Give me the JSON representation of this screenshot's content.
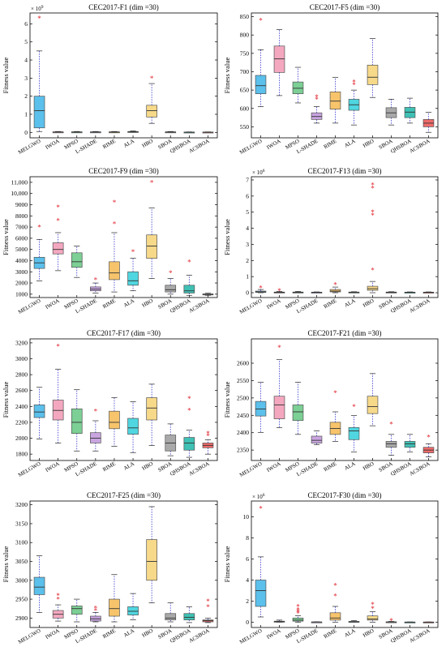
{
  "categories": [
    "MELGWO",
    "IWOA",
    "MPSO",
    "L-SHADE",
    "RIME",
    "ALA",
    "HBO",
    "SBOA",
    "QHSBOA",
    "ACSBOA"
  ],
  "colors": [
    "#5bc0eb",
    "#f4a8c0",
    "#7ccf95",
    "#c9a5e0",
    "#f7c46c",
    "#4fd6e0",
    "#f7d98a",
    "#a9a9a9",
    "#3fc1b5",
    "#ef6b6b"
  ],
  "ylabel": "Fitness value",
  "chart_data": [
    {
      "type": "box",
      "title": "CEC2017-F1 (dim =30)",
      "multiplier": "× 10^9",
      "ylim": [
        -0.3,
        6.6
      ],
      "yticks": [
        0,
        1,
        2,
        3,
        4,
        5,
        6
      ],
      "yticklabels": [
        "0",
        "1",
        "2",
        "3",
        "4",
        "5",
        "6"
      ],
      "boxes": [
        {
          "min": 0.05,
          "q1": 0.25,
          "median": 1.2,
          "q3": 2.0,
          "max": 4.5,
          "outliers": [
            6.3
          ]
        },
        {
          "min": 0.0,
          "q1": 0.01,
          "median": 0.02,
          "q3": 0.03,
          "max": 0.05,
          "outliers": []
        },
        {
          "min": 0.0,
          "q1": 0.01,
          "median": 0.02,
          "q3": 0.03,
          "max": 0.05,
          "outliers": []
        },
        {
          "min": 0.0,
          "q1": 0.01,
          "median": 0.02,
          "q3": 0.03,
          "max": 0.05,
          "outliers": []
        },
        {
          "min": 0.0,
          "q1": 0.01,
          "median": 0.02,
          "q3": 0.03,
          "max": 0.05,
          "outliers": []
        },
        {
          "min": 0.0,
          "q1": 0.01,
          "median": 0.03,
          "q3": 0.05,
          "max": 0.08,
          "outliers": []
        },
        {
          "min": 0.5,
          "q1": 0.85,
          "median": 1.2,
          "q3": 1.5,
          "max": 2.7,
          "outliers": [
            3.0
          ]
        },
        {
          "min": 0.0,
          "q1": 0.01,
          "median": 0.02,
          "q3": 0.03,
          "max": 0.05,
          "outliers": []
        },
        {
          "min": 0.0,
          "q1": 0.0,
          "median": 0.01,
          "q3": 0.02,
          "max": 0.03,
          "outliers": []
        },
        {
          "min": 0.0,
          "q1": 0.0,
          "median": 0.01,
          "q3": 0.02,
          "max": 0.03,
          "outliers": []
        }
      ]
    },
    {
      "type": "box",
      "title": "CEC2017-F5 (dim =30)",
      "multiplier": "",
      "ylim": [
        520,
        860
      ],
      "yticks": [
        550,
        600,
        650,
        700,
        750,
        800,
        850
      ],
      "yticklabels": [
        "550",
        "600",
        "650",
        "700",
        "750",
        "800",
        "850"
      ],
      "boxes": [
        {
          "min": 605,
          "q1": 640,
          "median": 662,
          "q3": 690,
          "max": 760,
          "outliers": [
            840
          ]
        },
        {
          "min": 635,
          "q1": 698,
          "median": 735,
          "q3": 770,
          "max": 815,
          "outliers": []
        },
        {
          "min": 615,
          "q1": 640,
          "median": 655,
          "q3": 672,
          "max": 712,
          "outliers": []
        },
        {
          "min": 560,
          "q1": 570,
          "median": 578,
          "q3": 588,
          "max": 605,
          "outliers": [
            625,
            632
          ]
        },
        {
          "min": 560,
          "q1": 598,
          "median": 620,
          "q3": 645,
          "max": 685,
          "outliers": []
        },
        {
          "min": 555,
          "q1": 595,
          "median": 610,
          "q3": 625,
          "max": 650,
          "outliers": [
            665,
            672
          ]
        },
        {
          "min": 630,
          "q1": 665,
          "median": 685,
          "q3": 718,
          "max": 790,
          "outliers": []
        },
        {
          "min": 555,
          "q1": 575,
          "median": 588,
          "q3": 602,
          "max": 625,
          "outliers": []
        },
        {
          "min": 560,
          "q1": 575,
          "median": 590,
          "q3": 603,
          "max": 628,
          "outliers": []
        },
        {
          "min": 535,
          "q1": 550,
          "median": 560,
          "q3": 570,
          "max": 590,
          "outliers": []
        }
      ]
    },
    {
      "type": "box",
      "title": "CEC2017-F9 (dim =30)",
      "multiplier": "",
      "ylim": [
        700,
        11500
      ],
      "yticks": [
        1000,
        2000,
        3000,
        4000,
        5000,
        6000,
        7000,
        8000,
        9000,
        10000,
        11000
      ],
      "yticklabels": [
        "1000",
        "2000",
        "3000",
        "4000",
        "5000",
        "6000",
        "7000",
        "8000",
        "9000",
        "10,000",
        "11,000"
      ],
      "boxes": [
        {
          "min": 2200,
          "q1": 3300,
          "median": 3800,
          "q3": 4300,
          "max": 5900,
          "outliers": [
            7000
          ]
        },
        {
          "min": 3100,
          "q1": 4600,
          "median": 5000,
          "q3": 5600,
          "max": 6500,
          "outliers": [
            7600,
            8800
          ]
        },
        {
          "min": 2500,
          "q1": 3400,
          "median": 3900,
          "q3": 4700,
          "max": 5300,
          "outliers": []
        },
        {
          "min": 1100,
          "q1": 1300,
          "median": 1450,
          "q3": 1650,
          "max": 2000,
          "outliers": [
            2300
          ]
        },
        {
          "min": 1200,
          "q1": 2300,
          "median": 2900,
          "q3": 3900,
          "max": 6500,
          "outliers": [
            7300,
            9200
          ]
        },
        {
          "min": 1300,
          "q1": 1800,
          "median": 2200,
          "q3": 3000,
          "max": 4200,
          "outliers": [
            4800
          ]
        },
        {
          "min": 2400,
          "q1": 4200,
          "median": 5300,
          "q3": 6300,
          "max": 8700,
          "outliers": [
            11000
          ]
        },
        {
          "min": 1000,
          "q1": 1200,
          "median": 1400,
          "q3": 1800,
          "max": 2400,
          "outliers": [
            2900
          ]
        },
        {
          "min": 900,
          "q1": 1100,
          "median": 1300,
          "q3": 1800,
          "max": 2700,
          "outliers": [
            3900
          ]
        },
        {
          "min": 900,
          "q1": 950,
          "median": 990,
          "q3": 1020,
          "max": 1080,
          "outliers": []
        }
      ]
    },
    {
      "type": "box",
      "title": "CEC2017-F13 (dim =30)",
      "multiplier": "× 10^6",
      "ylim": [
        -0.3,
        7.2
      ],
      "yticks": [
        0,
        1,
        2,
        3,
        4,
        5,
        6,
        7
      ],
      "yticklabels": [
        "0",
        "1",
        "2",
        "3",
        "4",
        "5",
        "6",
        "7"
      ],
      "boxes": [
        {
          "min": 0.0,
          "q1": 0.02,
          "median": 0.05,
          "q3": 0.1,
          "max": 0.2,
          "outliers": [
            0.3
          ]
        },
        {
          "min": 0.0,
          "q1": 0.01,
          "median": 0.02,
          "q3": 0.04,
          "max": 0.08,
          "outliers": [
            0.12
          ]
        },
        {
          "min": 0.0,
          "q1": 0.01,
          "median": 0.02,
          "q3": 0.04,
          "max": 0.08,
          "outliers": []
        },
        {
          "min": 0.0,
          "q1": 0.01,
          "median": 0.02,
          "q3": 0.03,
          "max": 0.05,
          "outliers": []
        },
        {
          "min": 0.0,
          "q1": 0.05,
          "median": 0.1,
          "q3": 0.2,
          "max": 0.35,
          "outliers": [
            0.5
          ]
        },
        {
          "min": 0.0,
          "q1": 0.01,
          "median": 0.02,
          "q3": 0.04,
          "max": 0.06,
          "outliers": []
        },
        {
          "min": 0.0,
          "q1": 0.15,
          "median": 0.25,
          "q3": 0.4,
          "max": 0.7,
          "outliers": [
            1.4,
            4.8,
            5.0,
            6.5,
            6.7
          ]
        },
        {
          "min": 0.0,
          "q1": 0.01,
          "median": 0.02,
          "q3": 0.04,
          "max": 0.06,
          "outliers": []
        },
        {
          "min": 0.0,
          "q1": 0.01,
          "median": 0.02,
          "q3": 0.03,
          "max": 0.05,
          "outliers": []
        },
        {
          "min": 0.0,
          "q1": 0.01,
          "median": 0.02,
          "q3": 0.03,
          "max": 0.05,
          "outliers": []
        }
      ]
    },
    {
      "type": "box",
      "title": "CEC2017-F17 (dim =30)",
      "multiplier": "",
      "ylim": [
        1720,
        3250
      ],
      "yticks": [
        1800,
        2000,
        2200,
        2400,
        2600,
        2800,
        3000,
        3200
      ],
      "yticklabels": [
        "1800",
        "2000",
        "2200",
        "2400",
        "2600",
        "2800",
        "3000",
        "3200"
      ],
      "boxes": [
        {
          "min": 1990,
          "q1": 2260,
          "median": 2330,
          "q3": 2420,
          "max": 2640,
          "outliers": []
        },
        {
          "min": 1940,
          "q1": 2230,
          "median": 2350,
          "q3": 2480,
          "max": 2870,
          "outliers": [
            3160
          ]
        },
        {
          "min": 1840,
          "q1": 2060,
          "median": 2200,
          "q3": 2370,
          "max": 2610,
          "outliers": []
        },
        {
          "min": 1840,
          "q1": 1940,
          "median": 2000,
          "q3": 2070,
          "max": 2220,
          "outliers": [
            2340
          ]
        },
        {
          "min": 1900,
          "q1": 2120,
          "median": 2200,
          "q3": 2340,
          "max": 2510,
          "outliers": []
        },
        {
          "min": 1820,
          "q1": 2050,
          "median": 2130,
          "q3": 2250,
          "max": 2460,
          "outliers": []
        },
        {
          "min": 1910,
          "q1": 2230,
          "median": 2380,
          "q3": 2510,
          "max": 2680,
          "outliers": []
        },
        {
          "min": 1780,
          "q1": 1840,
          "median": 1940,
          "q3": 2040,
          "max": 2180,
          "outliers": []
        },
        {
          "min": 1760,
          "q1": 1850,
          "median": 1940,
          "q3": 2010,
          "max": 2100,
          "outliers": [
            2350,
            2500
          ]
        },
        {
          "min": 1800,
          "q1": 1880,
          "median": 1910,
          "q3": 1940,
          "max": 1980,
          "outliers": [
            2030,
            2060
          ]
        }
      ]
    },
    {
      "type": "box",
      "title": "CEC2017-F21 (dim =30)",
      "multiplier": "",
      "ylim": [
        2320,
        2670
      ],
      "yticks": [
        2350,
        2400,
        2450,
        2500,
        2550,
        2600
      ],
      "yticklabels": [
        "2350",
        "2400",
        "2450",
        "2500",
        "2550",
        "2600"
      ],
      "boxes": [
        {
          "min": 2400,
          "q1": 2448,
          "median": 2468,
          "q3": 2490,
          "max": 2545,
          "outliers": []
        },
        {
          "min": 2415,
          "q1": 2440,
          "median": 2480,
          "q3": 2505,
          "max": 2610,
          "outliers": [
            2645
          ]
        },
        {
          "min": 2395,
          "q1": 2435,
          "median": 2460,
          "q3": 2480,
          "max": 2545,
          "outliers": []
        },
        {
          "min": 2365,
          "q1": 2370,
          "median": 2378,
          "q3": 2390,
          "max": 2405,
          "outliers": []
        },
        {
          "min": 2375,
          "q1": 2395,
          "median": 2412,
          "q3": 2430,
          "max": 2460,
          "outliers": [
            2515
          ]
        },
        {
          "min": 2345,
          "q1": 2380,
          "median": 2405,
          "q3": 2415,
          "max": 2450,
          "outliers": [
            2475
          ]
        },
        {
          "min": 2420,
          "q1": 2455,
          "median": 2475,
          "q3": 2505,
          "max": 2570,
          "outliers": []
        },
        {
          "min": 2335,
          "q1": 2358,
          "median": 2368,
          "q3": 2375,
          "max": 2395,
          "outliers": [
            2425
          ]
        },
        {
          "min": 2345,
          "q1": 2358,
          "median": 2368,
          "q3": 2375,
          "max": 2395,
          "outliers": []
        },
        {
          "min": 2330,
          "q1": 2342,
          "median": 2350,
          "q3": 2358,
          "max": 2368,
          "outliers": [
            2388
          ]
        }
      ]
    },
    {
      "type": "box",
      "title": "CEC2017-F25 (dim =30)",
      "multiplier": "",
      "ylim": [
        2875,
        3210
      ],
      "yticks": [
        2900,
        2950,
        3000,
        3050,
        3100,
        3150,
        3200
      ],
      "yticklabels": [
        "2900",
        "2950",
        "3000",
        "3050",
        "3100",
        "3150",
        "3200"
      ],
      "boxes": [
        {
          "min": 2915,
          "q1": 2962,
          "median": 2982,
          "q3": 3008,
          "max": 3065,
          "outliers": []
        },
        {
          "min": 2892,
          "q1": 2900,
          "median": 2910,
          "q3": 2920,
          "max": 2935,
          "outliers": [
            2950,
            2960
          ]
        },
        {
          "min": 2890,
          "q1": 2910,
          "median": 2925,
          "q3": 2932,
          "max": 2950,
          "outliers": []
        },
        {
          "min": 2890,
          "q1": 2892,
          "median": 2898,
          "q3": 2905,
          "max": 2915,
          "outliers": [
            2920,
            2927
          ]
        },
        {
          "min": 2890,
          "q1": 2905,
          "median": 2925,
          "q3": 2950,
          "max": 3015,
          "outliers": []
        },
        {
          "min": 2895,
          "q1": 2908,
          "median": 2918,
          "q3": 2930,
          "max": 2965,
          "outliers": []
        },
        {
          "min": 2940,
          "q1": 3000,
          "median": 3050,
          "q3": 3108,
          "max": 3195,
          "outliers": []
        },
        {
          "min": 2890,
          "q1": 2895,
          "median": 2900,
          "q3": 2912,
          "max": 2940,
          "outliers": []
        },
        {
          "min": 2888,
          "q1": 2895,
          "median": 2902,
          "q3": 2912,
          "max": 2930,
          "outliers": []
        },
        {
          "min": 2888,
          "q1": 2890,
          "median": 2893,
          "q3": 2895,
          "max": 2900,
          "outliers": [
            2930,
            2945
          ]
        }
      ]
    },
    {
      "type": "box",
      "title": "CEC2017-F30 (dim =30)",
      "multiplier": "× 10^6",
      "ylim": [
        -0.5,
        11.5
      ],
      "yticks": [
        0,
        2,
        4,
        6,
        8,
        10
      ],
      "yticklabels": [
        "0",
        "2",
        "4",
        "6",
        "8",
        "10"
      ],
      "boxes": [
        {
          "min": 0.5,
          "q1": 1.5,
          "median": 3.0,
          "q3": 4.0,
          "max": 6.2,
          "outliers": [
            10.8
          ]
        },
        {
          "min": 0.0,
          "q1": 0.02,
          "median": 0.05,
          "q3": 0.1,
          "max": 0.2,
          "outliers": []
        },
        {
          "min": 0.0,
          "q1": 0.1,
          "median": 0.2,
          "q3": 0.4,
          "max": 0.6,
          "outliers": [
            0.85,
            1.0,
            1.2,
            1.5
          ]
        },
        {
          "min": 0.0,
          "q1": 0.01,
          "median": 0.02,
          "q3": 0.03,
          "max": 0.05,
          "outliers": []
        },
        {
          "min": 0.0,
          "q1": 0.2,
          "median": 0.4,
          "q3": 0.9,
          "max": 1.5,
          "outliers": [
            2.5,
            3.5
          ]
        },
        {
          "min": 0.0,
          "q1": 0.02,
          "median": 0.04,
          "q3": 0.08,
          "max": 0.15,
          "outliers": []
        },
        {
          "min": 0.0,
          "q1": 0.2,
          "median": 0.3,
          "q3": 0.6,
          "max": 1.0,
          "outliers": [
            1.3,
            1.7
          ]
        },
        {
          "min": 0.0,
          "q1": 0.01,
          "median": 0.02,
          "q3": 0.04,
          "max": 0.08,
          "outliers": [
            0.15
          ]
        },
        {
          "min": 0.0,
          "q1": 0.0,
          "median": 0.01,
          "q3": 0.02,
          "max": 0.03,
          "outliers": []
        },
        {
          "min": 0.0,
          "q1": 0.0,
          "median": 0.01,
          "q3": 0.02,
          "max": 0.03,
          "outliers": []
        }
      ]
    }
  ]
}
